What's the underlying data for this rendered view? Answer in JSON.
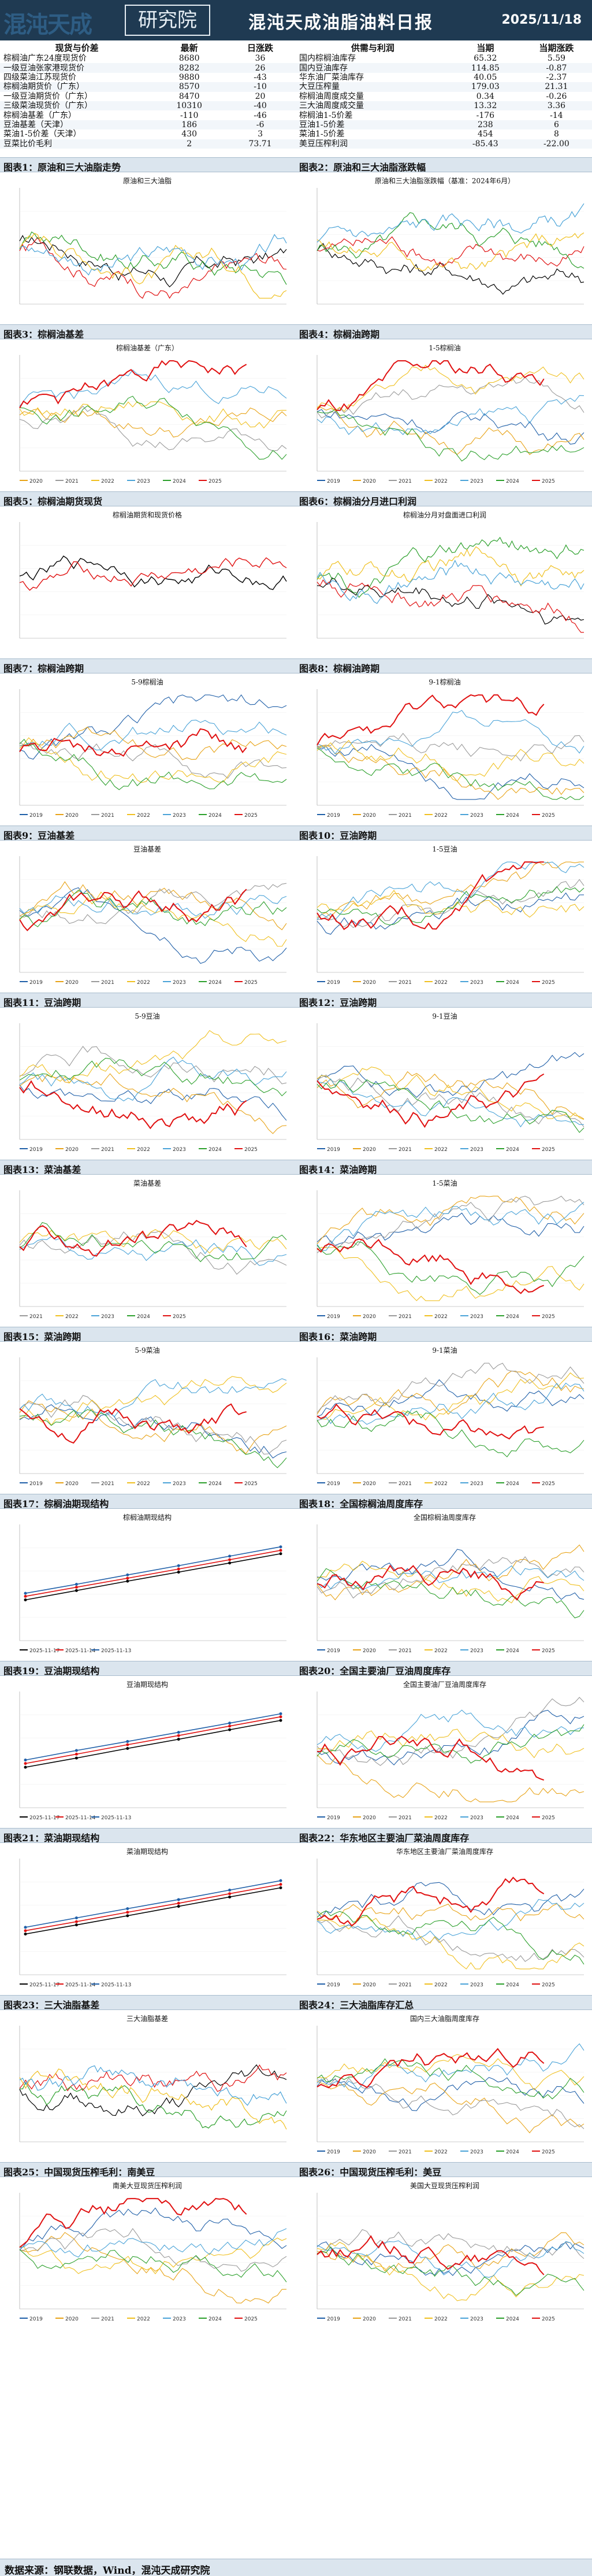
{
  "header": {
    "logo_text": "混沌天成",
    "logo_box_text": "研究院",
    "title": "混沌天成油脂油料日报",
    "date": "2025/11/18"
  },
  "table_left": {
    "headers": [
      "现货与价差",
      "最新",
      "日涨跌"
    ],
    "rows": [
      [
        "棕榈油广东24度现货价",
        "8680",
        "36"
      ],
      [
        "一级豆油张家港现货价",
        "8282",
        "26"
      ],
      [
        "四级菜油江苏现货价",
        "9880",
        "-43"
      ],
      [
        "棕榈油期货价（广东）",
        "8570",
        "-10"
      ],
      [
        "一级豆油期货价（广东）",
        "8470",
        "20"
      ],
      [
        "三级菜油现货价（广东）",
        "10310",
        "-40"
      ],
      [
        "棕榈油基差（广东）",
        "-110",
        "-46"
      ],
      [
        "豆油基差（天津）",
        "186",
        "-6"
      ],
      [
        "菜油1-5价差（天津）",
        "430",
        "3"
      ],
      [
        "豆菜比价毛利",
        "2",
        "73.71"
      ]
    ]
  },
  "table_right": {
    "headers": [
      "供需与利润",
      "当期",
      "当期涨跌"
    ],
    "rows": [
      [
        "国内棕榈油库存",
        "65.32",
        "5.59"
      ],
      [
        "国内豆油库存",
        "114.85",
        "-0.87"
      ],
      [
        "华东油厂菜油库存",
        "40.05",
        "-2.37"
      ],
      [
        "大豆压榨量",
        "179.03",
        "21.31"
      ],
      [
        "棕榈油周度成交量",
        "0.34",
        "-0.26"
      ],
      [
        "三大油周度成交量",
        "13.32",
        "3.36"
      ],
      [
        "棕榈油1-5价差",
        "-176",
        "-14"
      ],
      [
        "豆油1-5价差",
        "238",
        "6"
      ],
      [
        "菜油1-5价差",
        "454",
        "8"
      ],
      [
        "美豆压榨利润",
        "-85.43",
        "-22.00"
      ]
    ]
  },
  "figures": [
    {
      "left": "图表1：原油和三大油脂走势",
      "right": "图表2：原油和三大油脂涨跌幅"
    },
    {
      "left": "图表3：棕榈油基差",
      "right": "图表4：棕榈油跨期"
    },
    {
      "left": "图表5：棕榈油期货现货",
      "right": "图表6：棕榈油分月进口利润"
    },
    {
      "left": "图表7：棕榈油跨期",
      "right": "图表8：棕榈油跨期"
    },
    {
      "left": "图表9：豆油基差",
      "right": "图表10：豆油跨期"
    },
    {
      "left": "图表11：豆油跨期",
      "right": "图表12：豆油跨期"
    },
    {
      "left": "图表13：菜油基差",
      "right": "图表14：菜油跨期"
    },
    {
      "left": "图表15：菜油跨期",
      "right": "图表16：菜油跨期"
    },
    {
      "left": "图表17：棕榈油期现结构",
      "right": "图表18：全国棕榈油周度库存"
    },
    {
      "left": "图表19：豆油期现结构",
      "right": "图表20：全国主要油厂豆油周度库存"
    },
    {
      "left": "图表21：菜油期现结构",
      "right": "图表22：华东地区主要油厂菜油周度库存"
    },
    {
      "left": "图表23：三大油脂基差",
      "right": "图表24：三大油脂库存汇总"
    },
    {
      "left": "图表25：中国现货压榨毛利：南美豆",
      "right": "图表26：中国现货压榨毛利：美豆"
    }
  ],
  "panels": [
    {
      "title": "原油和三大油脂",
      "kind": "multi",
      "legend": []
    },
    {
      "title": "原油和三大油脂涨跌幅（基准：2024年6月）",
      "kind": "multi",
      "legend": []
    },
    {
      "title": "棕榈油基差（广东）",
      "kind": "seasonal",
      "legend": [
        "2020",
        "2021",
        "2022",
        "2023",
        "2024",
        "2025"
      ]
    },
    {
      "title": "1-5棕榈油",
      "kind": "seasonal",
      "legend": [
        "2019",
        "2020",
        "2021",
        "2022",
        "2023",
        "2024",
        "2025"
      ]
    },
    {
      "title": "棕榈油期货和现货价格",
      "kind": "two",
      "legend": []
    },
    {
      "title": "棕榈油分月对盘面进口利润",
      "kind": "multi",
      "legend": []
    },
    {
      "title": "5-9棕榈油",
      "kind": "seasonal",
      "legend": [
        "2019",
        "2020",
        "2021",
        "2022",
        "2023",
        "2024",
        "2025"
      ]
    },
    {
      "title": "9-1棕榈油",
      "kind": "seasonal",
      "legend": [
        "2019",
        "2020",
        "2021",
        "2022",
        "2023",
        "2024",
        "2025"
      ]
    },
    {
      "title": "豆油基差",
      "kind": "seasonal",
      "legend": [
        "2019",
        "2020",
        "2021",
        "2022",
        "2023",
        "2024",
        "2025"
      ]
    },
    {
      "title": "1-5豆油",
      "kind": "seasonal",
      "legend": [
        "2019",
        "2020",
        "2021",
        "2022",
        "2023",
        "2024",
        "2025"
      ]
    },
    {
      "title": "5-9豆油",
      "kind": "seasonal",
      "legend": [
        "2019",
        "2020",
        "2021",
        "2022",
        "2023",
        "2024",
        "2025"
      ]
    },
    {
      "title": "9-1豆油",
      "kind": "seasonal",
      "legend": [
        "2019",
        "2020",
        "2021",
        "2022",
        "2023",
        "2024",
        "2025"
      ]
    },
    {
      "title": "菜油基差",
      "kind": "seasonal",
      "legend": [
        "2021",
        "2022",
        "2023",
        "2024",
        "2025"
      ]
    },
    {
      "title": "1-5菜油",
      "kind": "seasonal",
      "legend": [
        "2019",
        "2020",
        "2021",
        "2022",
        "2023",
        "2024",
        "2025"
      ]
    },
    {
      "title": "5-9菜油",
      "kind": "seasonal",
      "legend": [
        "2019",
        "2020",
        "2021",
        "2022",
        "2023",
        "2024",
        "2025"
      ]
    },
    {
      "title": "9-1菜油",
      "kind": "seasonal",
      "legend": [
        "2019",
        "2020",
        "2021",
        "2022",
        "2023",
        "2024",
        "2025"
      ]
    },
    {
      "title": "棕榈油期现结构",
      "kind": "structure",
      "legend": [
        "2025-11-17",
        "2025-11-14",
        "2025-11-13"
      ]
    },
    {
      "title": "全国棕榈油周度库存",
      "kind": "seasonal",
      "legend": [
        "2019",
        "2020",
        "2021",
        "2022",
        "2023",
        "2024",
        "2025"
      ]
    },
    {
      "title": "豆油期现结构",
      "kind": "structure",
      "legend": [
        "2025-11-17",
        "2025-11-14",
        "2025-11-13"
      ]
    },
    {
      "title": "全国主要油厂豆油周度库存",
      "kind": "seasonal",
      "legend": [
        "2019",
        "2020",
        "2021",
        "2022",
        "2023",
        "2024",
        "2025"
      ]
    },
    {
      "title": "菜油期现结构",
      "kind": "structure",
      "legend": [
        "2025-11-17",
        "2025-11-14",
        "2025-11-13"
      ]
    },
    {
      "title": "华东地区主要油厂菜油周度库存",
      "kind": "seasonal",
      "legend": [
        "2019",
        "2020",
        "2021",
        "2022",
        "2023",
        "2024",
        "2025"
      ]
    },
    {
      "title": "三大油脂基差",
      "kind": "multi",
      "legend": []
    },
    {
      "title": "国内三大油脂周度库存",
      "kind": "seasonal",
      "legend": [
        "2019",
        "2020",
        "2021",
        "2022",
        "2023",
        "2024",
        "2025"
      ]
    },
    {
      "title": "南美大豆现货压榨利润",
      "kind": "seasonal",
      "legend": [
        "2019",
        "2020",
        "2021",
        "2022",
        "2023",
        "2024",
        "2025"
      ]
    },
    {
      "title": "美国大豆现货压榨利润",
      "kind": "seasonal",
      "legend": [
        "2019",
        "2020",
        "2021",
        "2022",
        "2023",
        "2024",
        "2025"
      ]
    }
  ],
  "colors": {
    "y2019": "#1f5fa8",
    "y2020": "#e8a317",
    "y2021": "#9a9a9a",
    "y2022": "#f0c020",
    "y2023": "#4aa3d8",
    "y2024": "#2ca02c",
    "y2025": "#e01010",
    "black": "#000000",
    "purple": "#7b4fc4",
    "bar": "#dbe5ee",
    "header": "#1f3a52"
  },
  "footer": "数据来源：钢联数据，Wind，混沌天成研究院"
}
